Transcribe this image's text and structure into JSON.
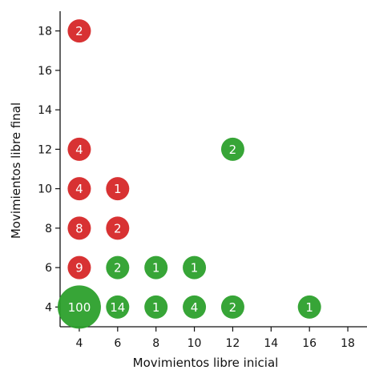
{
  "chart_data": {
    "type": "scatter",
    "title": "",
    "xlabel": "Movimientos libre inicial",
    "ylabel": "Movimientos libre final",
    "xlim": [
      3,
      19
    ],
    "ylim": [
      3,
      19
    ],
    "xticks": [
      4,
      6,
      8,
      10,
      12,
      14,
      16,
      18
    ],
    "yticks": [
      4,
      6,
      8,
      10,
      12,
      14,
      16,
      18
    ],
    "grid": false,
    "colors": {
      "above_diagonal": "#d62728",
      "not_above_diagonal": "#2ca02c"
    },
    "points": [
      {
        "x": 4,
        "y": 4,
        "count": 100
      },
      {
        "x": 6,
        "y": 4,
        "count": 14
      },
      {
        "x": 8,
        "y": 4,
        "count": 1
      },
      {
        "x": 10,
        "y": 4,
        "count": 4
      },
      {
        "x": 12,
        "y": 4,
        "count": 2
      },
      {
        "x": 16,
        "y": 4,
        "count": 1
      },
      {
        "x": 4,
        "y": 6,
        "count": 9
      },
      {
        "x": 6,
        "y": 6,
        "count": 2
      },
      {
        "x": 8,
        "y": 6,
        "count": 1
      },
      {
        "x": 10,
        "y": 6,
        "count": 1
      },
      {
        "x": 4,
        "y": 8,
        "count": 8
      },
      {
        "x": 6,
        "y": 8,
        "count": 2
      },
      {
        "x": 4,
        "y": 10,
        "count": 4
      },
      {
        "x": 6,
        "y": 10,
        "count": 1
      },
      {
        "x": 4,
        "y": 12,
        "count": 4
      },
      {
        "x": 12,
        "y": 12,
        "count": 2
      },
      {
        "x": 4,
        "y": 18,
        "count": 2
      }
    ]
  }
}
